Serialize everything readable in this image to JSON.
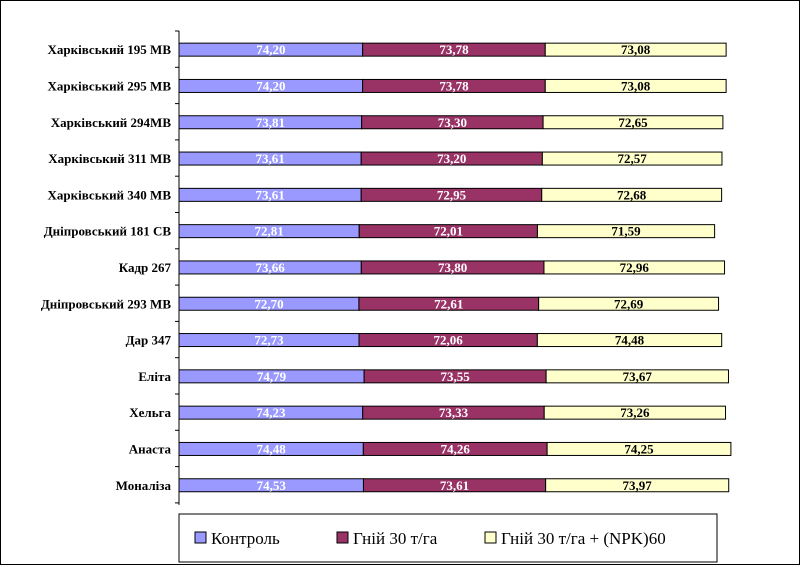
{
  "chart_data": {
    "type": "bar",
    "orientation": "horizontal",
    "stacked": true,
    "categories": [
      "Харківський 195 МВ",
      "Харківський 295 МВ",
      "Харківський 294МВ",
      "Харківський 311 МВ",
      "Харківський 340 МВ",
      "Дніпровський 181 СВ",
      "Кадр 267",
      "Дніпровський 293 МВ",
      "Дар 347",
      "Еліта",
      "Хельга",
      "Анаста",
      "Моналіза"
    ],
    "series": [
      {
        "name": "Контроль",
        "color": "#9999ff",
        "values": [
          74.2,
          74.2,
          73.81,
          73.61,
          73.61,
          72.81,
          73.66,
          72.7,
          72.73,
          74.79,
          74.23,
          74.48,
          74.53
        ],
        "labels": [
          "74,20",
          "74,20",
          "73,81",
          "73,61",
          "73,61",
          "72,81",
          "73,66",
          "72,70",
          "72,73",
          "74,79",
          "74,23",
          "74,48",
          "74,53"
        ]
      },
      {
        "name": "Гній 30 т/га",
        "color": "#993366",
        "values": [
          73.78,
          73.78,
          73.3,
          73.2,
          72.95,
          72.01,
          73.8,
          72.61,
          72.06,
          73.55,
          73.33,
          74.26,
          73.61
        ],
        "labels": [
          "73,78",
          "73,78",
          "73,30",
          "73,20",
          "72,95",
          "72,01",
          "73,80",
          "72,61",
          "72,06",
          "73,55",
          "73,33",
          "74,26",
          "73,61"
        ]
      },
      {
        "name": "Гній 30 т/га + (NPK)60",
        "color": "#ffffcc",
        "values": [
          73.08,
          73.08,
          72.65,
          72.57,
          72.68,
          71.59,
          72.96,
          72.69,
          74.48,
          73.67,
          73.26,
          74.25,
          73.97
        ],
        "labels": [
          "73,08",
          "73,08",
          "72,65",
          "72,57",
          "72,68",
          "71,59",
          "72,96",
          "72,69",
          "74,48",
          "73,67",
          "73,26",
          "74,25",
          "73,97"
        ]
      }
    ],
    "legend_position": "bottom",
    "grid": false
  }
}
